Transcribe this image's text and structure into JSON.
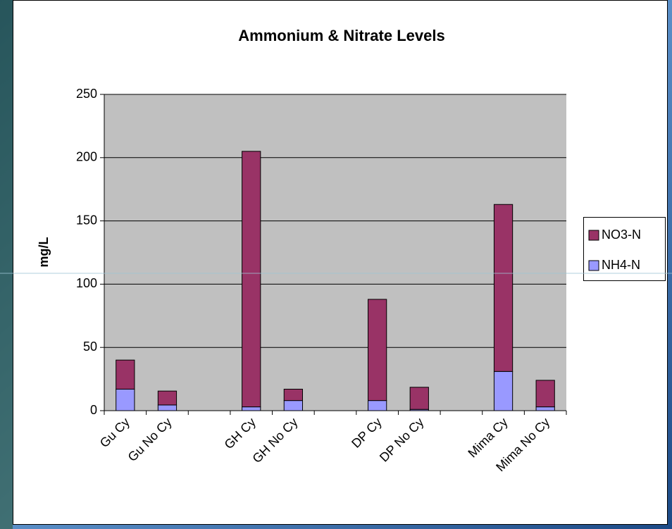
{
  "chart_data": {
    "type": "stacked-bar",
    "title": "Ammonium & Nitrate Levels",
    "y_label": "mg/L",
    "categories": [
      "Gu Cy",
      "Gu No Cy",
      null,
      "GH Cy",
      "GH No Cy",
      null,
      "DP Cy",
      "DP No Cy",
      null,
      "Mima Cy",
      "Mima No Cy"
    ],
    "series": [
      {
        "name": "NH4-N",
        "color": "#9999ff",
        "values": [
          17,
          4.5,
          null,
          3,
          8,
          null,
          8,
          1,
          null,
          31,
          3
        ]
      },
      {
        "name": "NO3-N",
        "color": "#993366",
        "values": [
          23,
          11,
          null,
          202,
          9,
          null,
          80,
          17.5,
          null,
          132,
          21
        ]
      }
    ],
    "ylim": [
      0,
      250
    ],
    "yticks": [
      0,
      50,
      100,
      150,
      200,
      250
    ],
    "grid": true,
    "legend": "right"
  }
}
